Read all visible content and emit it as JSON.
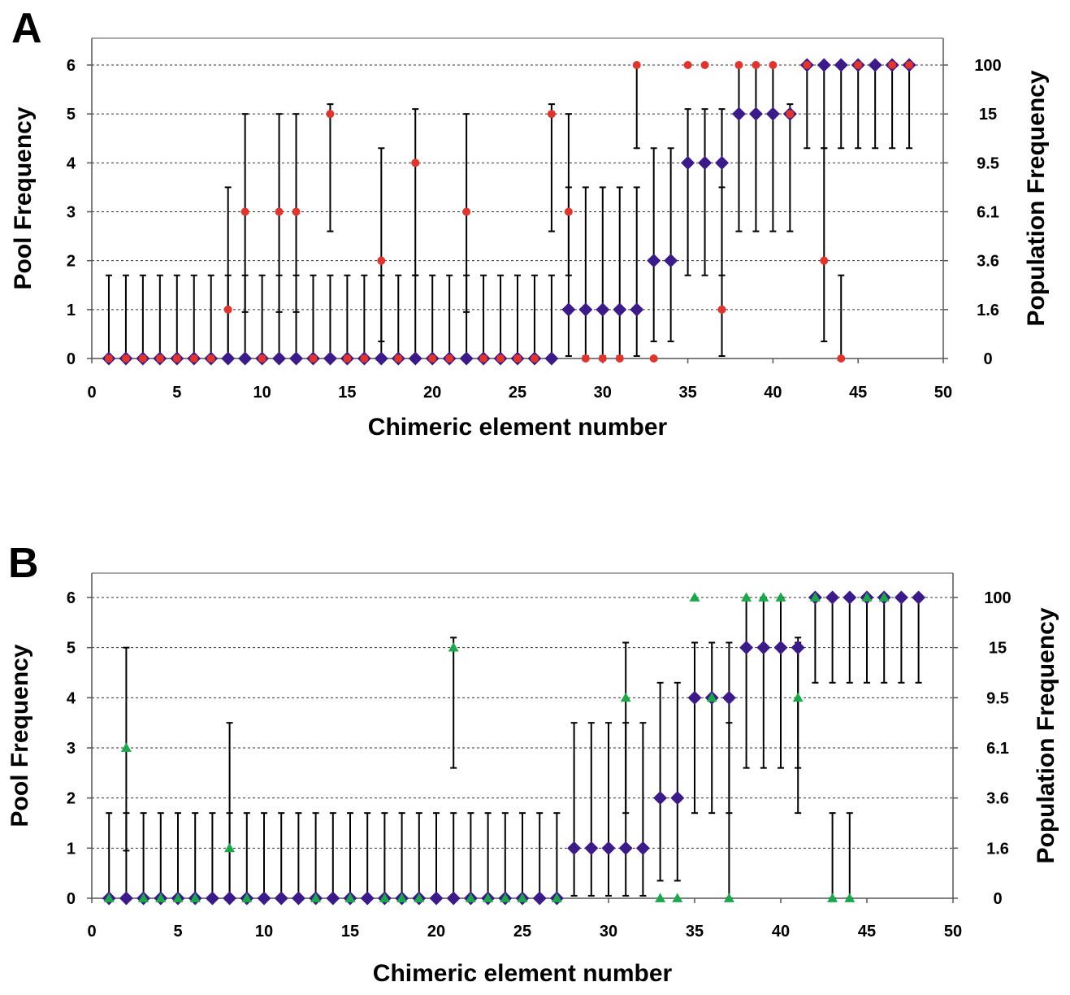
{
  "chart_data": [
    {
      "panel_label": "A",
      "type": "scatter",
      "xlabel": "Chimeric element number",
      "ylabel": "Pool Frequency",
      "y2label": "Population Frequency",
      "xlim": [
        0,
        50
      ],
      "ylim": [
        0,
        6
      ],
      "x_ticks": [
        0,
        5,
        10,
        15,
        20,
        25,
        30,
        35,
        40,
        45,
        50
      ],
      "y_ticks": [
        0,
        1,
        2,
        3,
        4,
        5,
        6
      ],
      "y2_ticks": [
        "0",
        "1.6",
        "3.6",
        "6.1",
        "9.5",
        "15",
        "100"
      ],
      "grid": "horizontal-dashed",
      "series": [
        {
          "marker": "diamond",
          "color": "#3b1a8a",
          "x": [
            1,
            2,
            3,
            4,
            5,
            6,
            7,
            8,
            9,
            10,
            11,
            12,
            13,
            14,
            15,
            16,
            17,
            18,
            19,
            20,
            21,
            22,
            23,
            24,
            25,
            26,
            27,
            28,
            29,
            30,
            31,
            32,
            33,
            34,
            35,
            36,
            37,
            38,
            39,
            40,
            41,
            42,
            43,
            44,
            45,
            46,
            47,
            48
          ],
          "y": [
            0,
            0,
            0,
            0,
            0,
            0,
            0,
            0,
            0,
            0,
            0,
            0,
            0,
            0,
            0,
            0,
            0,
            0,
            0,
            0,
            0,
            0,
            0,
            0,
            0,
            0,
            0,
            1,
            1,
            1,
            1,
            1,
            2,
            2,
            4,
            4,
            4,
            5,
            5,
            5,
            5,
            6,
            6,
            6,
            6,
            6,
            6,
            6
          ],
          "err_low": [
            0,
            0,
            0,
            0,
            0,
            0,
            0,
            0,
            0,
            0,
            0,
            0,
            0,
            0,
            0,
            0,
            0,
            0,
            0,
            0,
            0,
            0,
            0,
            0,
            0,
            0,
            0,
            0.05,
            0.05,
            0.05,
            0.05,
            0.05,
            0.35,
            0.35,
            1.7,
            1.7,
            1.7,
            2.6,
            2.6,
            2.6,
            2.6,
            4.3,
            4.3,
            4.3,
            4.3,
            4.3,
            4.3,
            4.3
          ],
          "err_high": [
            1.7,
            1.7,
            1.7,
            1.7,
            1.7,
            1.7,
            1.7,
            1.7,
            1.7,
            1.7,
            1.7,
            1.7,
            1.7,
            1.7,
            1.7,
            1.7,
            1.7,
            1.7,
            1.7,
            1.7,
            1.7,
            1.7,
            1.7,
            1.7,
            1.7,
            1.7,
            1.7,
            3.5,
            3.5,
            3.5,
            3.5,
            3.5,
            4.3,
            4.3,
            5.1,
            5.1,
            5.1,
            6,
            6,
            6,
            5.2,
            6,
            6,
            6,
            6,
            6,
            6,
            6
          ]
        },
        {
          "marker": "circle",
          "color": "#e0342c",
          "x": [
            1,
            2,
            3,
            4,
            5,
            6,
            7,
            8,
            9,
            10,
            11,
            12,
            13,
            14,
            15,
            16,
            17,
            18,
            19,
            20,
            21,
            22,
            23,
            24,
            25,
            26,
            27,
            28,
            29,
            30,
            31,
            32,
            33,
            34,
            35,
            36,
            37,
            38,
            39,
            40,
            41,
            42,
            43,
            44,
            45,
            46,
            47,
            48
          ],
          "y": [
            0,
            0,
            0,
            0,
            0,
            0,
            0,
            1,
            3,
            0,
            3,
            3,
            0,
            5,
            0,
            0,
            2,
            0,
            4,
            0,
            0,
            3,
            0,
            0,
            0,
            0,
            5,
            3,
            0,
            0,
            0,
            6,
            0,
            null,
            6,
            6,
            1,
            6,
            6,
            6,
            5,
            6,
            2,
            0,
            6,
            null,
            6,
            6
          ]
        }
      ],
      "extra_error_bars": [
        {
          "x": 8,
          "low": 0,
          "high": 3.5
        },
        {
          "x": 9,
          "low": 0.95,
          "high": 5.0
        },
        {
          "x": 11,
          "low": 0.95,
          "high": 5.0
        },
        {
          "x": 12,
          "low": 0.95,
          "high": 5.0
        },
        {
          "x": 14,
          "low": 2.6,
          "high": 5.2
        },
        {
          "x": 17,
          "low": 0.35,
          "high": 4.3
        },
        {
          "x": 19,
          "low": 1.7,
          "high": 5.1
        },
        {
          "x": 22,
          "low": 0.95,
          "high": 5.0
        },
        {
          "x": 27,
          "low": 2.6,
          "high": 5.2
        },
        {
          "x": 28,
          "low": 1.7,
          "high": 5.0
        },
        {
          "x": 32,
          "low": 4.3,
          "high": 6.0
        },
        {
          "x": 37,
          "low": 0.05,
          "high": 3.5
        },
        {
          "x": 43,
          "low": 0.35,
          "high": 4.3
        },
        {
          "x": 44,
          "low": 0,
          "high": 1.7
        }
      ]
    },
    {
      "panel_label": "B",
      "type": "scatter",
      "xlabel": "Chimeric element number",
      "ylabel": "Pool Frequency",
      "y2label": "Population Frequency",
      "xlim": [
        0,
        50
      ],
      "ylim": [
        0,
        6
      ],
      "x_ticks": [
        0,
        5,
        10,
        15,
        20,
        25,
        30,
        35,
        40,
        45,
        50
      ],
      "y_ticks": [
        0,
        1,
        2,
        3,
        4,
        5,
        6
      ],
      "y2_ticks": [
        "0",
        "1.6",
        "3.6",
        "6.1",
        "9.5",
        "15",
        "100"
      ],
      "grid": "horizontal-dashed",
      "series": [
        {
          "marker": "diamond",
          "color": "#3b1a8a",
          "x": [
            1,
            2,
            3,
            4,
            5,
            6,
            7,
            8,
            9,
            10,
            11,
            12,
            13,
            14,
            15,
            16,
            17,
            18,
            19,
            20,
            21,
            22,
            23,
            24,
            25,
            26,
            27,
            28,
            29,
            30,
            31,
            32,
            33,
            34,
            35,
            36,
            37,
            38,
            39,
            40,
            41,
            42,
            43,
            44,
            45,
            46,
            47,
            48
          ],
          "y": [
            0,
            0,
            0,
            0,
            0,
            0,
            0,
            0,
            0,
            0,
            0,
            0,
            0,
            0,
            0,
            0,
            0,
            0,
            0,
            0,
            0,
            0,
            0,
            0,
            0,
            0,
            0,
            1,
            1,
            1,
            1,
            1,
            2,
            2,
            4,
            4,
            4,
            5,
            5,
            5,
            5,
            6,
            6,
            6,
            6,
            6,
            6,
            6
          ],
          "err_low": [
            0,
            0,
            0,
            0,
            0,
            0,
            0,
            0,
            0,
            0,
            0,
            0,
            0,
            0,
            0,
            0,
            0,
            0,
            0,
            0,
            0,
            0,
            0,
            0,
            0,
            0,
            0,
            0.05,
            0.05,
            0.05,
            0.05,
            0.05,
            0.35,
            0.35,
            1.7,
            1.7,
            1.7,
            2.6,
            2.6,
            2.6,
            2.6,
            4.3,
            4.3,
            4.3,
            4.3,
            4.3,
            4.3,
            4.3
          ],
          "err_high": [
            1.7,
            1.7,
            1.7,
            1.7,
            1.7,
            1.7,
            1.7,
            1.7,
            1.7,
            1.7,
            1.7,
            1.7,
            1.7,
            1.7,
            1.7,
            1.7,
            1.7,
            1.7,
            1.7,
            1.7,
            1.7,
            1.7,
            1.7,
            1.7,
            1.7,
            1.7,
            1.7,
            3.5,
            3.5,
            3.5,
            3.5,
            3.5,
            4.3,
            4.3,
            5.1,
            5.1,
            5.1,
            6,
            6,
            6,
            5.2,
            6,
            6,
            6,
            6,
            6,
            6,
            6
          ]
        },
        {
          "marker": "triangle",
          "color": "#1aa84a",
          "x": [
            1,
            2,
            3,
            4,
            5,
            6,
            8,
            9,
            13,
            15,
            17,
            18,
            19,
            21,
            22,
            23,
            24,
            25,
            27,
            31,
            33,
            34,
            35,
            36,
            37,
            38,
            39,
            40,
            41,
            42,
            43,
            44,
            45,
            46
          ],
          "y": [
            0,
            3,
            0,
            0,
            0,
            0,
            1,
            0,
            0,
            0,
            0,
            0,
            0,
            5,
            0,
            0,
            0,
            0,
            0,
            4,
            0,
            0,
            6,
            4,
            0,
            6,
            6,
            6,
            4,
            6,
            0,
            0,
            6,
            6
          ]
        }
      ],
      "extra_error_bars": [
        {
          "x": 2,
          "low": 0.95,
          "high": 5.0
        },
        {
          "x": 8,
          "low": 0,
          "high": 3.5
        },
        {
          "x": 21,
          "low": 2.6,
          "high": 5.2
        },
        {
          "x": 31,
          "low": 1.7,
          "high": 5.1
        },
        {
          "x": 37,
          "low": 0,
          "high": 3.5
        },
        {
          "x": 41,
          "low": 1.7,
          "high": 5.1
        },
        {
          "x": 43,
          "low": 0,
          "high": 1.7
        },
        {
          "x": 44,
          "low": 0,
          "high": 1.7
        }
      ]
    }
  ]
}
